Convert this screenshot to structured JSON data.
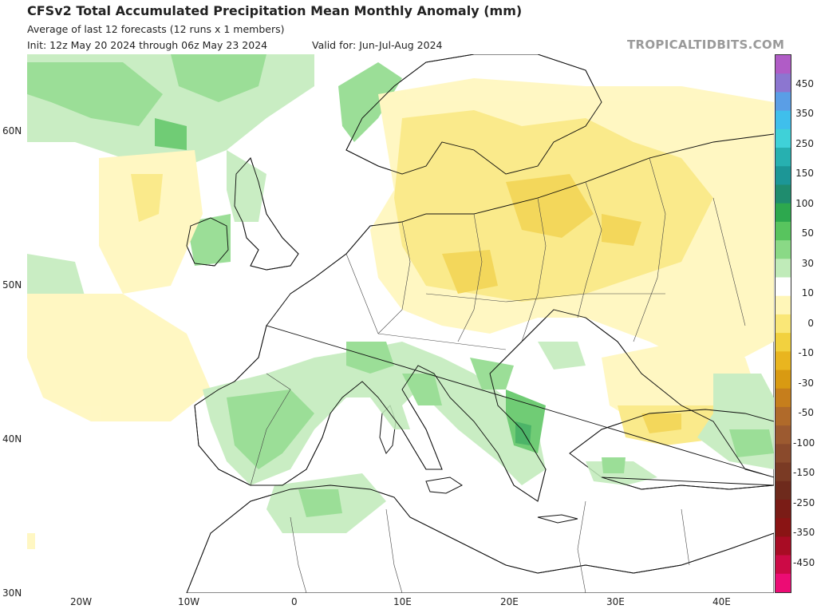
{
  "header": {
    "title": "CFSv2 Total Accumulated Precipitation Mean Monthly Anomaly (mm)",
    "subtitle": "Average of last 12 forecasts (12 runs x 1 members)",
    "init": "Init: 12z May 20 2024 through 06z May 23 2024",
    "valid": "Valid for: Jun-Jul-Aug 2024",
    "brand": "TROPICALTIDBITS.COM"
  },
  "map": {
    "latitude_labels": [
      "60N",
      "50N",
      "40N",
      "30N"
    ],
    "longitude_labels": [
      "20W",
      "10W",
      "0",
      "10E",
      "20E",
      "30E",
      "40E"
    ],
    "colors": {
      "ocean": "#ffffff",
      "coast": "#111111",
      "border": "#444444"
    }
  },
  "colorbar": {
    "labels": [
      "450",
      "350",
      "250",
      "150",
      "100",
      "50",
      "30",
      "10",
      "0",
      "-10",
      "-30",
      "-50",
      "-100",
      "-150",
      "-250",
      "-350",
      "-450"
    ],
    "colors": [
      "#b05cc6",
      "#8c76d0",
      "#5a9ee6",
      "#3fbfec",
      "#3fd1d8",
      "#27b0b0",
      "#1c9696",
      "#1f8c6e",
      "#2da84e",
      "#58c45e",
      "#8ad986",
      "#c0ebb9",
      "#ffffff",
      "#fff6b8",
      "#fae777",
      "#f2d13f",
      "#e9b51f",
      "#d99a12",
      "#c67e1c",
      "#b06a2a",
      "#9c5a30",
      "#8a4a2c",
      "#7a3a24",
      "#6e2a1c",
      "#7a1c16",
      "#8a1414",
      "#a80c24",
      "#cc0a46",
      "#ec0c74"
    ]
  }
}
